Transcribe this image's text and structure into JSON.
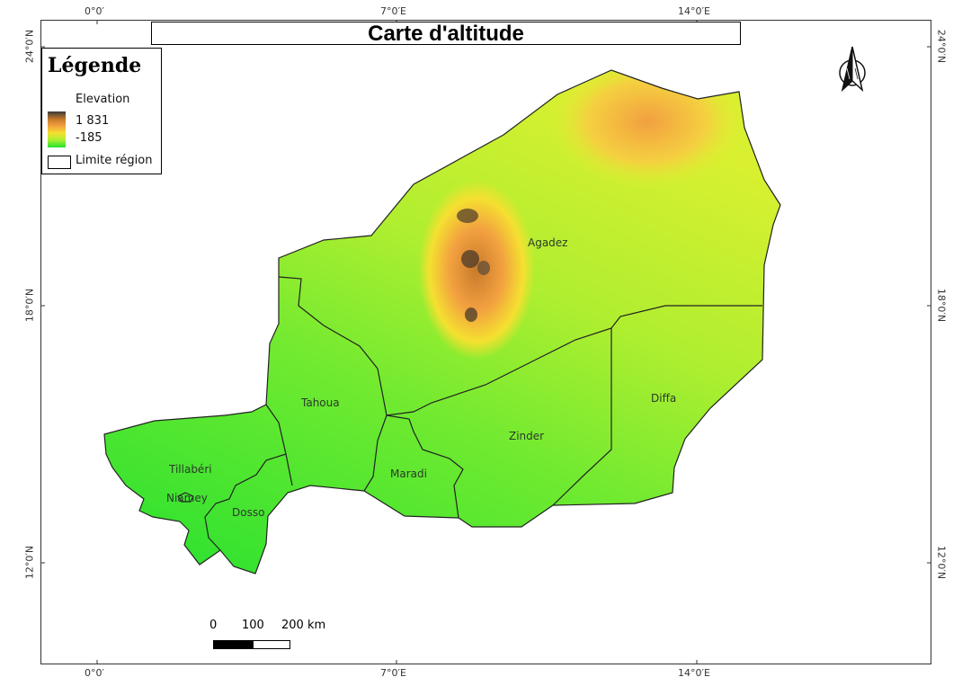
{
  "title": "Carte d'altitude",
  "legend": {
    "heading": "Légende",
    "elevation_title": "Elevation",
    "max_value": "1 831",
    "min_value": "-185",
    "region_label": "Limite région",
    "ramp_colors": [
      "#3a3a3a",
      "#c87a2a",
      "#f2a040",
      "#f5e030",
      "#a8f030",
      "#22e030"
    ]
  },
  "axes": {
    "top_ticks": [
      "0°0′",
      "7°0′E",
      "14°0′E"
    ],
    "bottom_ticks": [
      "0°0′",
      "7°0′E",
      "14°0′E"
    ],
    "left_ticks": [
      "24°0′N",
      "18°0′N",
      "12°0′N"
    ],
    "right_ticks": [
      "24°0′N",
      "18°0′N",
      "12°0′N"
    ]
  },
  "regions": [
    {
      "name": "Agadez"
    },
    {
      "name": "Tahoua"
    },
    {
      "name": "Diffa"
    },
    {
      "name": "Zinder"
    },
    {
      "name": "Maradi"
    },
    {
      "name": "Tillabéri"
    },
    {
      "name": "Niamey"
    },
    {
      "name": "Dosso"
    }
  ],
  "scale_bar": {
    "labels": [
      "0",
      "100",
      "200 km"
    ]
  },
  "colors": {
    "low_green": "#22e030",
    "mid_yellow": "#f5e030",
    "high_orange": "#f2a040",
    "peak_dark": "#3a3a3a",
    "boundary": "#222222"
  },
  "icons": {
    "north_arrow": "north-arrow-icon"
  }
}
